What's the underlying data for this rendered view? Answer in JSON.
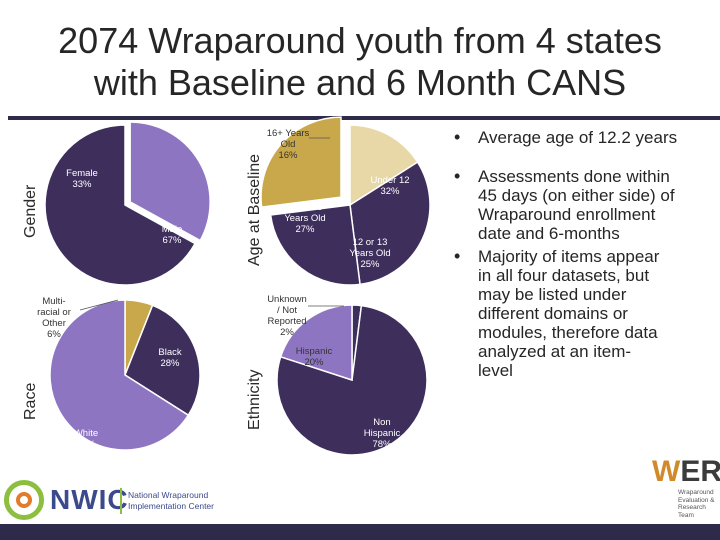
{
  "title_line1": "2074 Wraparound youth from 4 states",
  "title_line2": "with Baseline and 6 Month CANS",
  "colors": {
    "dark": "#3d2e5c",
    "purple": "#8e75c2",
    "gold": "#c9a84c",
    "cream": "#e8d8a8",
    "text": "#262626",
    "bar": "#2d2a4a"
  },
  "chart_data": [
    {
      "type": "pie",
      "title": "Gender",
      "categories": [
        "Female",
        "Male"
      ],
      "values": [
        33,
        67
      ],
      "labels": [
        [
          "Female",
          "33%"
        ],
        [
          "Male",
          "67%"
        ]
      ]
    },
    {
      "type": "pie",
      "title": "Age at Baseline",
      "categories": [
        "16+ Years Old",
        "Under 12",
        "12 or 13 Years Old",
        "14 or 15 Years Old"
      ],
      "values": [
        16,
        32,
        25,
        27
      ],
      "labels": [
        [
          "16+ Years",
          "Old",
          "16%"
        ],
        [
          "Under 12",
          "32%"
        ],
        [
          "12 or 13",
          "Years Old",
          "25%"
        ],
        [
          "14 or 15",
          "Years Old",
          "27%"
        ]
      ]
    },
    {
      "type": "pie",
      "title": "Race",
      "categories": [
        "Multi-racial or Other",
        "Black",
        "White"
      ],
      "values": [
        6,
        28,
        66
      ],
      "labels": [
        [
          "Multi-",
          "racial or",
          "Other",
          "6%"
        ],
        [
          "Black",
          "28%"
        ],
        [
          "White",
          "66%"
        ]
      ]
    },
    {
      "type": "pie",
      "title": "Ethnicity",
      "categories": [
        "Unknown / Not Reported",
        "Non Hispanic",
        "Hispanic"
      ],
      "values": [
        2,
        78,
        20
      ],
      "labels": [
        [
          "Unknown",
          "/ Not",
          "Reported",
          "2%"
        ],
        [
          "Non",
          "Hispanic",
          "78%"
        ],
        [
          "Hispanic",
          "20%"
        ]
      ]
    }
  ],
  "bullets": [
    "Average age of 12.2 years",
    "Assessments done within 45 days (on either side) of Wraparound enrollment date and 6-months",
    "Majority of items appear in all four datasets, but may be listed under different domains or modules, therefore data analyzed at an item-level"
  ],
  "bullet_symbol": "•",
  "logo": {
    "name": "NWIC",
    "full_line1": "National Wraparound",
    "full_line2": "Implementation Center"
  },
  "wert": {
    "name_w": "W",
    "name_rest": "ERT",
    "sub1": "Wraparound",
    "sub2": "Evaluation &",
    "sub3": "Research",
    "sub4": "Team"
  }
}
